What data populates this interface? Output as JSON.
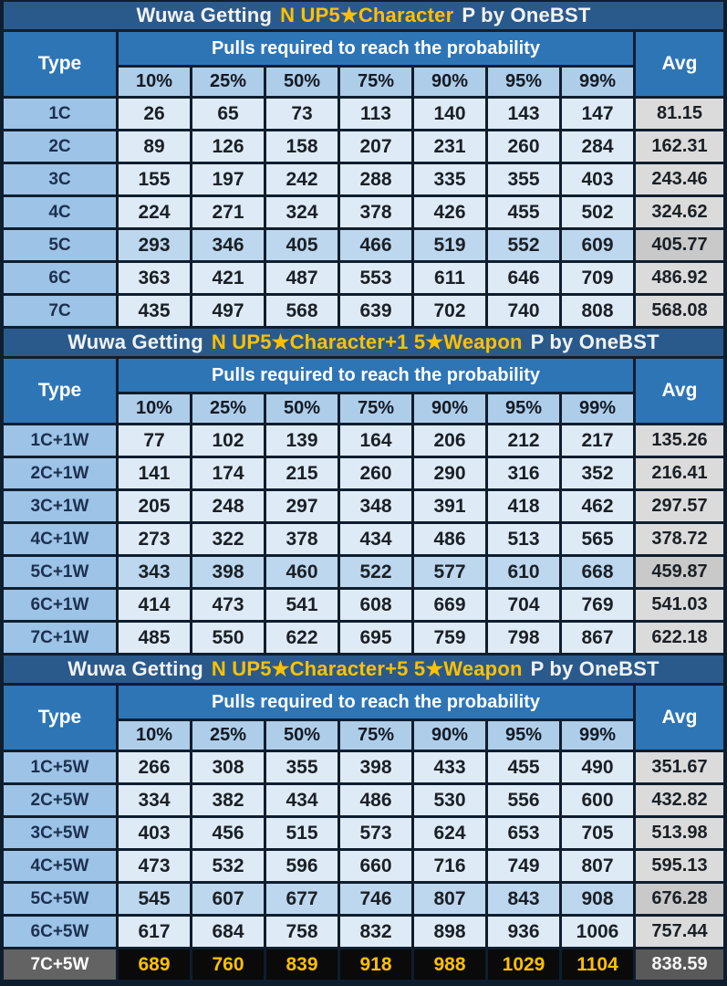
{
  "colors": {
    "page_border": "#0F1E2E",
    "title_bar_bg": "#2A5A8C",
    "header_blue": "#2E75B6",
    "percent_header_bg": "#AECDE9",
    "type_cell_bg": "#9DC3E6",
    "data_cell_bg": "#DEEBF7",
    "data_cell_highlight_bg": "#BDD7EE",
    "avg_cell_bg": "#DBDBDB",
    "avg_cell_highlight_bg": "#C9C9C9",
    "dark_row_data_bg": "#0A0A0A",
    "dark_row_type_bg": "#636363",
    "dark_row_avg_bg": "#595959",
    "gold_text": "#FFC000",
    "white_text": "#F2F2F2",
    "dark_text": "#1A2026"
  },
  "table_header": {
    "type_label": "Type",
    "group_label": "Pulls required to reach the probability",
    "percentiles": [
      "10%",
      "25%",
      "50%",
      "75%",
      "90%",
      "95%",
      "99%"
    ],
    "avg_label": "Avg"
  },
  "chart_data": [
    {
      "type": "table",
      "title_parts": {
        "prefix": "Wuwa Getting",
        "highlight": "N UP5★Character",
        "suffix": "P by OneBST"
      },
      "columns": [
        "Type",
        "10%",
        "25%",
        "50%",
        "75%",
        "90%",
        "95%",
        "99%",
        "Avg"
      ],
      "rows": [
        {
          "type": "1C",
          "pulls": [
            26,
            65,
            73,
            113,
            140,
            143,
            147
          ],
          "avg": "81.15",
          "variant": "normal"
        },
        {
          "type": "2C",
          "pulls": [
            89,
            126,
            158,
            207,
            231,
            260,
            284
          ],
          "avg": "162.31",
          "variant": "normal"
        },
        {
          "type": "3C",
          "pulls": [
            155,
            197,
            242,
            288,
            335,
            355,
            403
          ],
          "avg": "243.46",
          "variant": "normal"
        },
        {
          "type": "4C",
          "pulls": [
            224,
            271,
            324,
            378,
            426,
            455,
            502
          ],
          "avg": "324.62",
          "variant": "normal"
        },
        {
          "type": "5C",
          "pulls": [
            293,
            346,
            405,
            466,
            519,
            552,
            609
          ],
          "avg": "405.77",
          "variant": "highlight"
        },
        {
          "type": "6C",
          "pulls": [
            363,
            421,
            487,
            553,
            611,
            646,
            709
          ],
          "avg": "486.92",
          "variant": "normal"
        },
        {
          "type": "7C",
          "pulls": [
            435,
            497,
            568,
            639,
            702,
            740,
            808
          ],
          "avg": "568.08",
          "variant": "normal"
        }
      ]
    },
    {
      "type": "table",
      "title_parts": {
        "prefix": "Wuwa Getting",
        "highlight": "N UP5★Character+1 5★Weapon",
        "suffix": "P by OneBST"
      },
      "columns": [
        "Type",
        "10%",
        "25%",
        "50%",
        "75%",
        "90%",
        "95%",
        "99%",
        "Avg"
      ],
      "rows": [
        {
          "type": "1C+1W",
          "pulls": [
            77,
            102,
            139,
            164,
            206,
            212,
            217
          ],
          "avg": "135.26",
          "variant": "normal"
        },
        {
          "type": "2C+1W",
          "pulls": [
            141,
            174,
            215,
            260,
            290,
            316,
            352
          ],
          "avg": "216.41",
          "variant": "normal"
        },
        {
          "type": "3C+1W",
          "pulls": [
            205,
            248,
            297,
            348,
            391,
            418,
            462
          ],
          "avg": "297.57",
          "variant": "normal"
        },
        {
          "type": "4C+1W",
          "pulls": [
            273,
            322,
            378,
            434,
            486,
            513,
            565
          ],
          "avg": "378.72",
          "variant": "normal"
        },
        {
          "type": "5C+1W",
          "pulls": [
            343,
            398,
            460,
            522,
            577,
            610,
            668
          ],
          "avg": "459.87",
          "variant": "highlight"
        },
        {
          "type": "6C+1W",
          "pulls": [
            414,
            473,
            541,
            608,
            669,
            704,
            769
          ],
          "avg": "541.03",
          "variant": "normal"
        },
        {
          "type": "7C+1W",
          "pulls": [
            485,
            550,
            622,
            695,
            759,
            798,
            867
          ],
          "avg": "622.18",
          "variant": "normal"
        }
      ]
    },
    {
      "type": "table",
      "title_parts": {
        "prefix": "Wuwa Getting",
        "highlight": "N UP5★Character+5 5★Weapon",
        "suffix": "P by OneBST"
      },
      "columns": [
        "Type",
        "10%",
        "25%",
        "50%",
        "75%",
        "90%",
        "95%",
        "99%",
        "Avg"
      ],
      "rows": [
        {
          "type": "1C+5W",
          "pulls": [
            266,
            308,
            355,
            398,
            433,
            455,
            490
          ],
          "avg": "351.67",
          "variant": "normal"
        },
        {
          "type": "2C+5W",
          "pulls": [
            334,
            382,
            434,
            486,
            530,
            556,
            600
          ],
          "avg": "432.82",
          "variant": "normal"
        },
        {
          "type": "3C+5W",
          "pulls": [
            403,
            456,
            515,
            573,
            624,
            653,
            705
          ],
          "avg": "513.98",
          "variant": "normal"
        },
        {
          "type": "4C+5W",
          "pulls": [
            473,
            532,
            596,
            660,
            716,
            749,
            807
          ],
          "avg": "595.13",
          "variant": "normal"
        },
        {
          "type": "5C+5W",
          "pulls": [
            545,
            607,
            677,
            746,
            807,
            843,
            908
          ],
          "avg": "676.28",
          "variant": "highlight"
        },
        {
          "type": "6C+5W",
          "pulls": [
            617,
            684,
            758,
            832,
            898,
            936,
            1006
          ],
          "avg": "757.44",
          "variant": "normal"
        },
        {
          "type": "7C+5W",
          "pulls": [
            689,
            760,
            839,
            918,
            988,
            1029,
            1104
          ],
          "avg": "838.59",
          "variant": "dark"
        }
      ]
    }
  ]
}
